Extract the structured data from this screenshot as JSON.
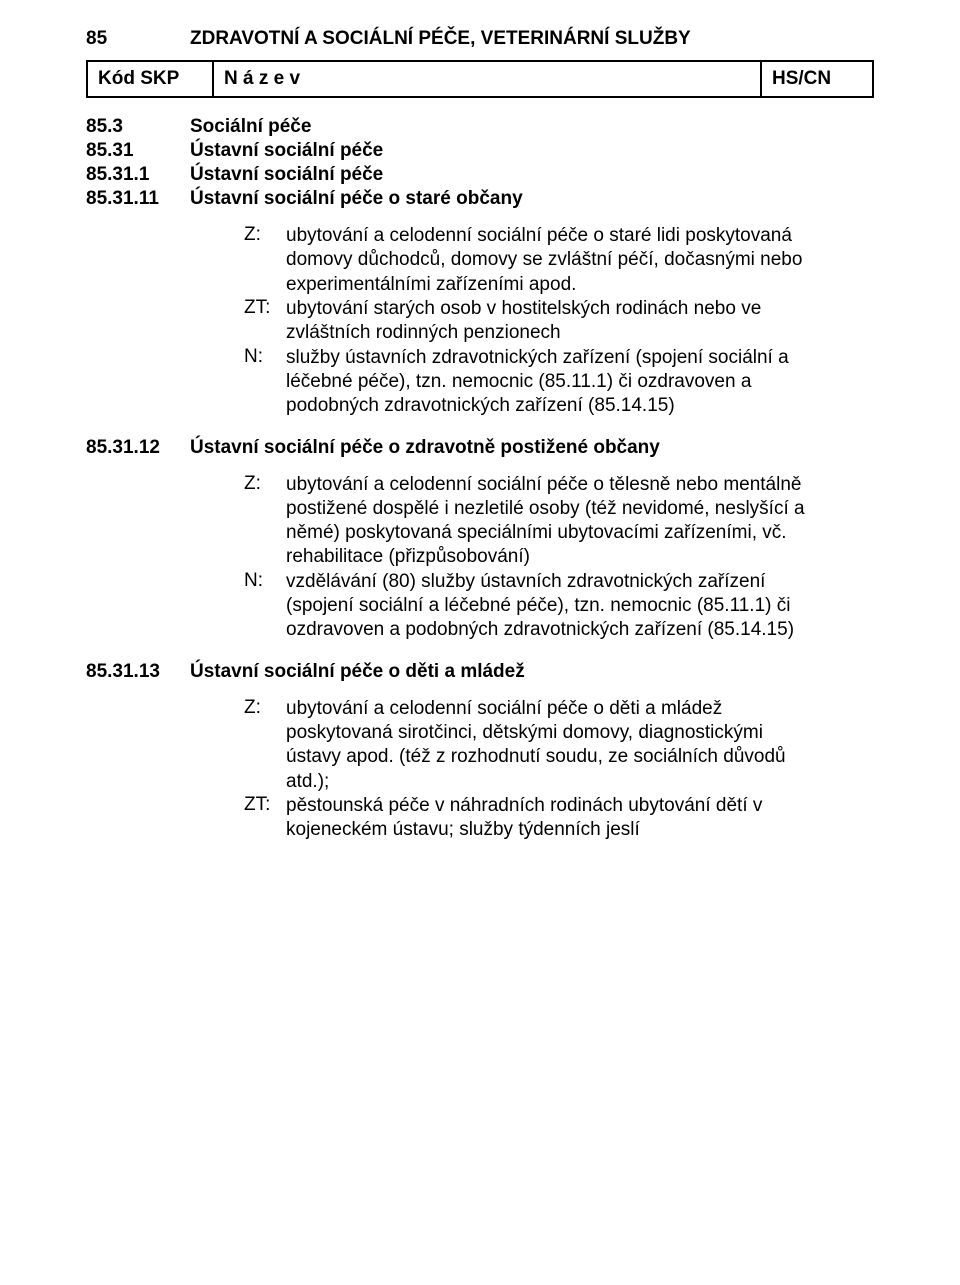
{
  "top": {
    "code": "85",
    "title": "ZDRAVOTNÍ A SOCIÁLNÍ PÉČE, VETERINÁRNÍ SLUŽBY"
  },
  "header": {
    "kod": "Kód SKP",
    "nazev": "N á z e v",
    "hscn": "HS/CN"
  },
  "s853": {
    "code": "85.3",
    "label": "Sociální péče"
  },
  "s8531": {
    "code": "85.31",
    "label": "Ústavní sociální péče"
  },
  "s85311": {
    "code": "85.31.1",
    "label": "Ústavní sociální péče"
  },
  "s853111": {
    "code": "85.31.11",
    "label": "Ústavní sociální péče o staré občany",
    "z": "ubytování a celodenní sociální péče o staré lidi poskytovaná domovy důchodců, domovy se zvláštní péčí, dočasnými nebo experimentálními zařízeními apod.",
    "zt": "ubytování starých osob v hostitelských rodinách nebo ve zvláštních rodinných penzionech",
    "n": "služby ústavních zdravotnických zařízení (spojení sociální a léčebné péče), tzn. nemocnic (85.11.1) či ozdravoven a podobných zdravotnických zařízení (85.14.15)"
  },
  "s853112": {
    "code": "85.31.12",
    "label": "Ústavní sociální péče o zdravotně postižené občany",
    "z": "ubytování a celodenní sociální péče o tělesně nebo mentálně postižené dospělé i nezletilé osoby (též nevidomé, neslyšící a němé) poskytovaná speciálními ubytovacími zařízeními, vč. rehabilitace (přizpůsobování)",
    "n": "vzdělávání (80)\nslužby ústavních zdravotnických zařízení (spojení sociální a léčebné péče), tzn. nemocnic (85.11.1) či ozdravoven a podobných zdravotnických zařízení (85.14.15)"
  },
  "s853113": {
    "code": "85.31.13",
    "label": "Ústavní sociální péče o děti a mládež",
    "z": "ubytování a celodenní sociální péče o děti a mládež poskytovaná sirotčinci, dětskými domovy, diagnostickými ústavy apod. (též z rozhodnutí soudu, ze sociálních důvodů atd.);",
    "zt": "pěstounská péče v náhradních rodinách ubytování dětí v kojeneckém ústavu; služby týdenních jeslí"
  },
  "tags": {
    "z": "Z:",
    "zt": "ZT:",
    "n": "N:"
  }
}
